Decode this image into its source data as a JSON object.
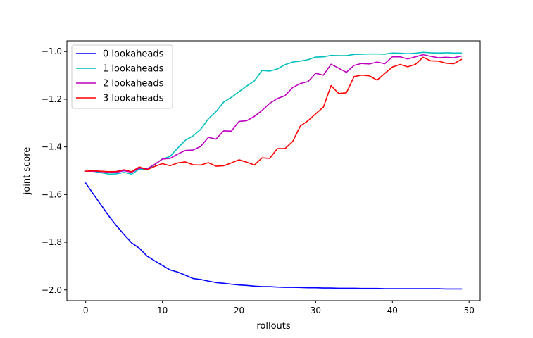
{
  "chart_data": {
    "type": "line",
    "title": "",
    "xlabel": "rollouts",
    "ylabel": "joint score",
    "xlim": [
      -2.45,
      51.45
    ],
    "ylim": [
      -2.045,
      -0.955
    ],
    "xticks": [
      0,
      10,
      20,
      30,
      40,
      50
    ],
    "yticks": [
      -2.0,
      -1.8,
      -1.6,
      -1.4,
      -1.2,
      -1.0
    ],
    "xtick_labels": [
      "0",
      "10",
      "20",
      "30",
      "40",
      "50"
    ],
    "ytick_labels": [
      "−2.0",
      "−1.8",
      "−1.6",
      "−1.4",
      "−1.2",
      "−1.0"
    ],
    "grid": false,
    "legend": "top-left",
    "x": [
      0,
      1,
      2,
      3,
      4,
      5,
      6,
      7,
      8,
      9,
      10,
      11,
      12,
      13,
      14,
      15,
      16,
      17,
      18,
      19,
      20,
      21,
      22,
      23,
      24,
      25,
      26,
      27,
      28,
      29,
      30,
      31,
      32,
      33,
      34,
      35,
      36,
      37,
      38,
      39,
      40,
      41,
      42,
      43,
      44,
      45,
      46,
      47,
      48,
      49
    ],
    "series": [
      {
        "name": "0 lookaheads",
        "color": "#0000ff",
        "values": [
          -1.552,
          -1.598,
          -1.643,
          -1.689,
          -1.73,
          -1.768,
          -1.803,
          -1.825,
          -1.858,
          -1.878,
          -1.897,
          -1.916,
          -1.925,
          -1.938,
          -1.952,
          -1.956,
          -1.963,
          -1.969,
          -1.972,
          -1.976,
          -1.979,
          -1.981,
          -1.984,
          -1.986,
          -1.986,
          -1.988,
          -1.989,
          -1.989,
          -1.99,
          -1.991,
          -1.991,
          -1.992,
          -1.992,
          -1.993,
          -1.993,
          -1.993,
          -1.994,
          -1.994,
          -1.994,
          -1.995,
          -1.995,
          -1.995,
          -1.995,
          -1.995,
          -1.995,
          -1.995,
          -1.995,
          -1.996,
          -1.996,
          -1.996
        ]
      },
      {
        "name": "1 lookaheads",
        "color": "#00bfbf",
        "values": [
          -1.502,
          -1.502,
          -1.508,
          -1.514,
          -1.513,
          -1.507,
          -1.514,
          -1.493,
          -1.497,
          -1.474,
          -1.451,
          -1.44,
          -1.405,
          -1.372,
          -1.354,
          -1.326,
          -1.282,
          -1.252,
          -1.212,
          -1.192,
          -1.168,
          -1.145,
          -1.123,
          -1.079,
          -1.082,
          -1.073,
          -1.055,
          -1.044,
          -1.04,
          -1.034,
          -1.023,
          -1.022,
          -1.016,
          -1.017,
          -1.017,
          -1.012,
          -1.011,
          -1.01,
          -1.01,
          -1.011,
          -1.006,
          -1.007,
          -1.009,
          -1.007,
          -1.003,
          -1.005,
          -1.006,
          -1.005,
          -1.006,
          -1.006
        ]
      },
      {
        "name": "2 lookaheads",
        "color": "#bf00bf",
        "values": [
          -1.502,
          -1.502,
          -1.503,
          -1.506,
          -1.506,
          -1.5,
          -1.506,
          -1.489,
          -1.492,
          -1.473,
          -1.451,
          -1.448,
          -1.43,
          -1.415,
          -1.413,
          -1.398,
          -1.36,
          -1.367,
          -1.333,
          -1.334,
          -1.293,
          -1.29,
          -1.272,
          -1.247,
          -1.217,
          -1.197,
          -1.185,
          -1.151,
          -1.134,
          -1.126,
          -1.091,
          -1.099,
          -1.053,
          -1.07,
          -1.087,
          -1.058,
          -1.05,
          -1.052,
          -1.044,
          -1.051,
          -1.022,
          -1.022,
          -1.031,
          -1.022,
          -1.013,
          -1.02,
          -1.026,
          -1.024,
          -1.026,
          -1.019
        ]
      },
      {
        "name": "3 lookaheads",
        "color": "#ff0000",
        "values": [
          -1.502,
          -1.5,
          -1.502,
          -1.504,
          -1.503,
          -1.496,
          -1.504,
          -1.484,
          -1.496,
          -1.482,
          -1.47,
          -1.479,
          -1.467,
          -1.463,
          -1.475,
          -1.476,
          -1.466,
          -1.481,
          -1.479,
          -1.467,
          -1.454,
          -1.464,
          -1.476,
          -1.446,
          -1.448,
          -1.407,
          -1.407,
          -1.377,
          -1.312,
          -1.29,
          -1.261,
          -1.233,
          -1.143,
          -1.176,
          -1.173,
          -1.105,
          -1.099,
          -1.102,
          -1.12,
          -1.092,
          -1.065,
          -1.054,
          -1.064,
          -1.054,
          -1.024,
          -1.039,
          -1.04,
          -1.049,
          -1.051,
          -1.033
        ]
      }
    ]
  }
}
